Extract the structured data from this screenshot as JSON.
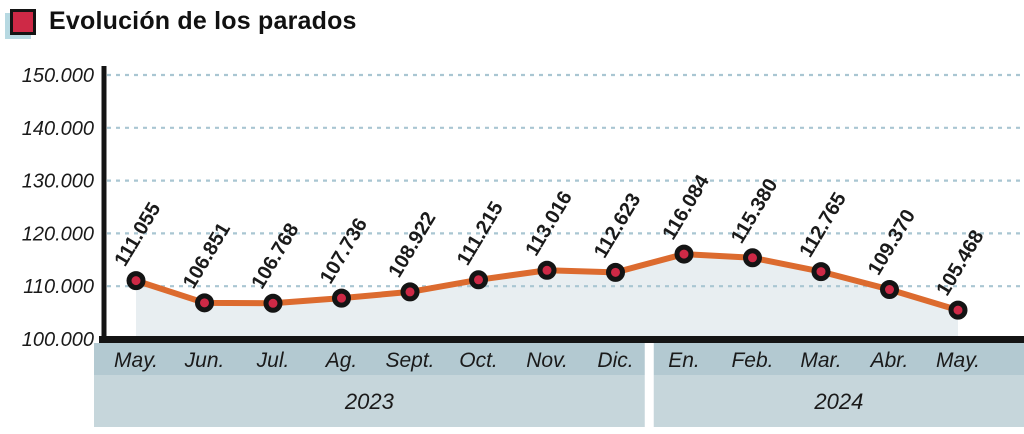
{
  "title": {
    "text": "Evolución de los parados"
  },
  "colors": {
    "bullet": "#ce2946",
    "bullet_shadow": "#b7d9e2",
    "line": "#dc6b2f",
    "marker_fill": "#ce2946",
    "marker_outline": "#141414",
    "area_fill": "#e8eef1",
    "grid": "#a9c6d2",
    "axis": "#141414",
    "band_months": "#b3c9d1",
    "band_years": "#c6d6db",
    "text": "#1a1a1a"
  },
  "chart_data": {
    "type": "line",
    "title": "Evolución de los parados",
    "categories": [
      "May.",
      "Jun.",
      "Jul.",
      "Ag.",
      "Sept.",
      "Oct.",
      "Nov.",
      "Dic.",
      "En.",
      "Feb.",
      "Mar.",
      "Abr.",
      "May."
    ],
    "values": [
      111055,
      106851,
      106768,
      107736,
      108922,
      111215,
      113016,
      112623,
      116084,
      115380,
      112765,
      109370,
      105468
    ],
    "point_labels": [
      "111.055",
      "106.851",
      "106.768",
      "107.736",
      "108.922",
      "111.215",
      "113.016",
      "112.623",
      "116.084",
      "115.380",
      "112.765",
      "109.370",
      "105.468"
    ],
    "year_groups": [
      {
        "label": "2023",
        "from_index": 0,
        "to_index": 7
      },
      {
        "label": "2024",
        "from_index": 8,
        "to_index": 12
      }
    ],
    "y_axis": {
      "min": 100000,
      "max": 150000,
      "tick_step": 10000,
      "tick_labels": [
        "100.000",
        "110.000",
        "120.000",
        "130.000",
        "140.000",
        "150.000"
      ]
    },
    "xlabel": "",
    "ylabel": "",
    "grid": "horizontal-dashed",
    "legend": "none",
    "area_under_line": true
  }
}
